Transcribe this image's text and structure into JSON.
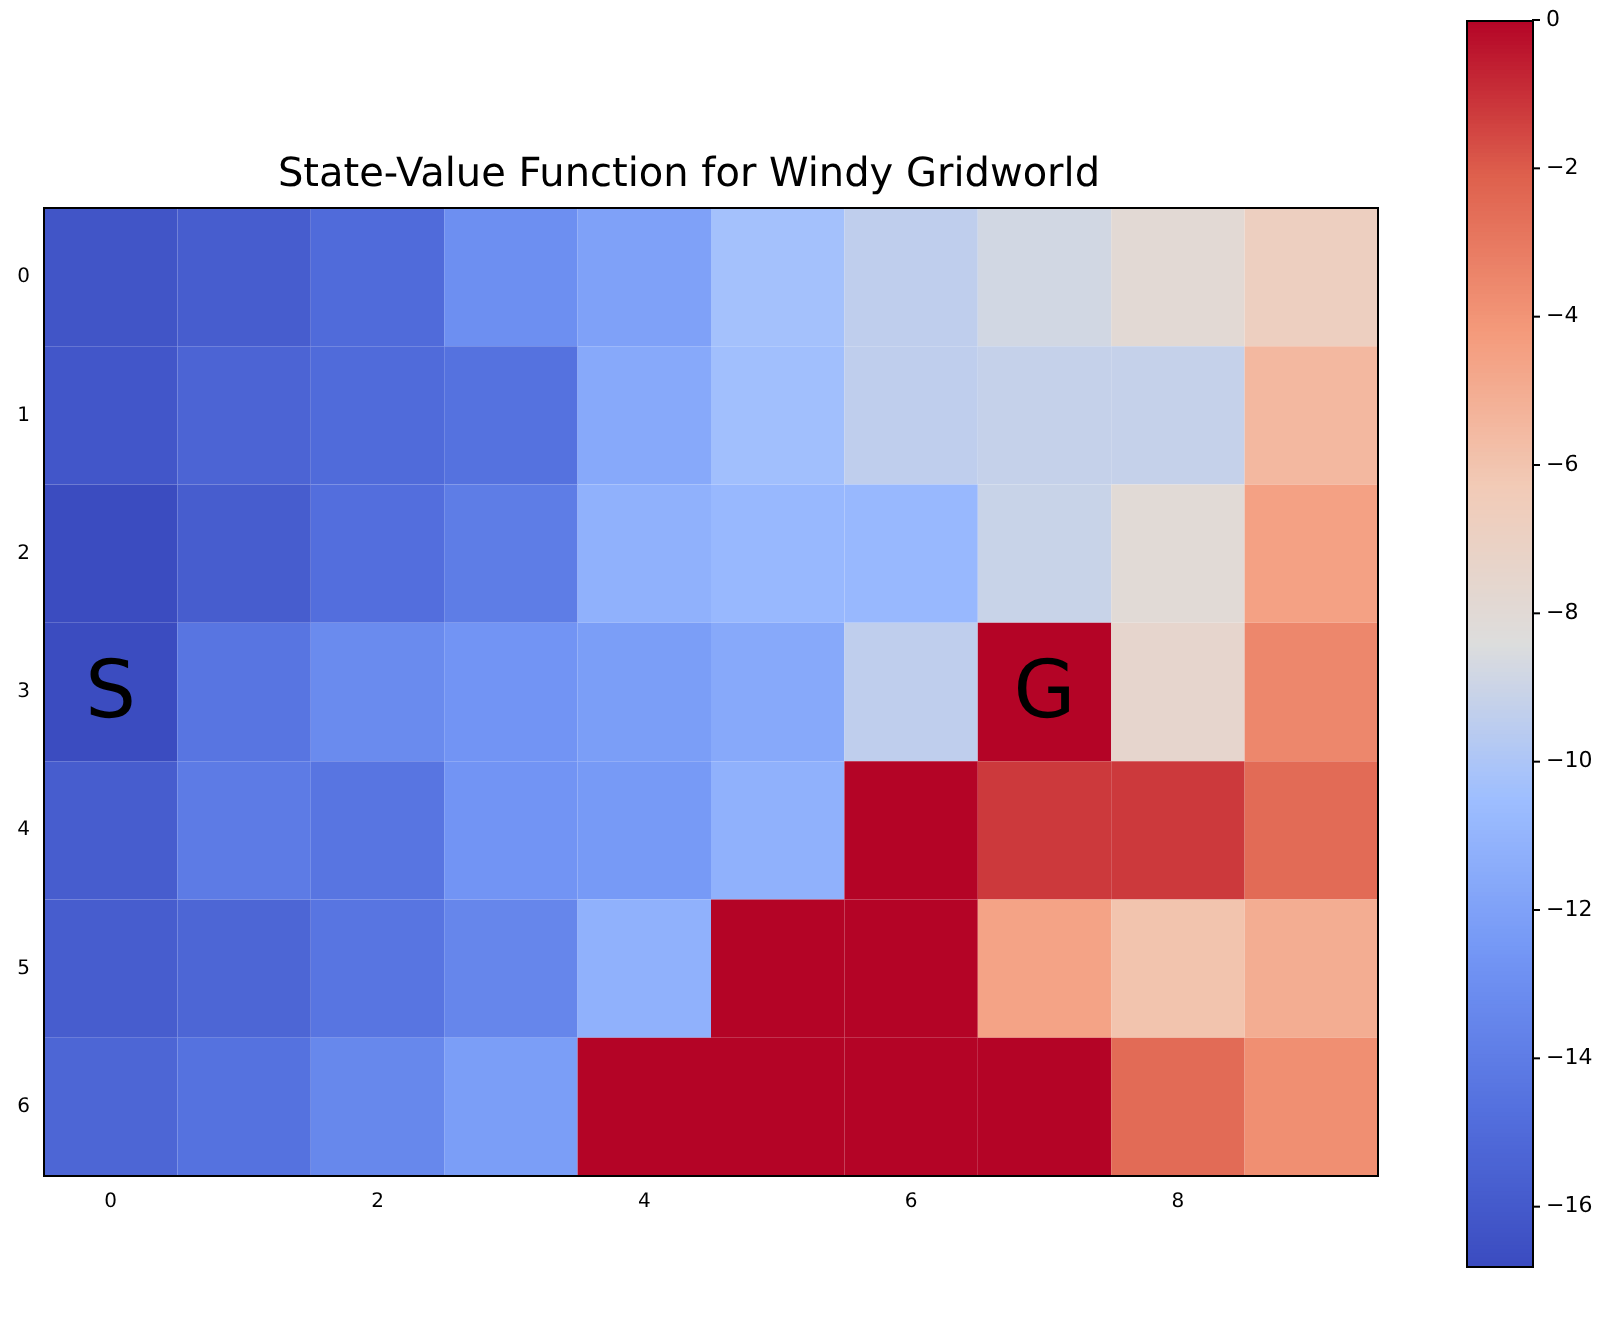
{
  "chart_data": {
    "type": "heatmap",
    "title": "State-Value Function for Windy Gridworld",
    "categories": [
      "0",
      null,
      "2",
      null,
      "4",
      null,
      "6",
      null,
      "8",
      null
    ],
    "y_categories": [
      "0",
      "1",
      "2",
      "3",
      "4",
      "5",
      "6"
    ],
    "cells": [
      [
        -16.3,
        -15.8,
        -15.0,
        -13.0,
        -12.0,
        -10.3,
        -9.4,
        -8.8,
        -7.9,
        -6.8
      ],
      [
        -16.2,
        -15.4,
        -15.0,
        -14.6,
        -11.6,
        -10.4,
        -9.4,
        -9.2,
        -9.2,
        -5.5
      ],
      [
        -16.8,
        -15.8,
        -14.8,
        -14.0,
        -11.2,
        -10.8,
        -10.8,
        -9.1,
        -8.0,
        -4.5
      ],
      [
        -16.8,
        -14.4,
        -13.2,
        -12.7,
        -12.2,
        -11.6,
        -9.4,
        0,
        -7.5,
        -3.5
      ],
      [
        -15.8,
        -14.1,
        -14.4,
        -12.7,
        -12.4,
        -11.2,
        0,
        -1.2,
        -1.2,
        -2.5
      ],
      [
        -15.8,
        -15.3,
        -14.4,
        -13.5,
        -11.2,
        0,
        0,
        -4.6,
        -6.0,
        -5.0
      ],
      [
        -15.3,
        -14.6,
        -13.4,
        -12.2,
        0,
        0,
        0,
        0,
        -2.5,
        -3.8
      ]
    ],
    "clim": [
      -16.8,
      0
    ],
    "cticks": [
      -16,
      -14,
      -12,
      -10,
      -8,
      -6,
      -4,
      -2,
      0
    ],
    "cell_labels": [
      [
        null,
        null,
        null,
        null,
        null,
        null,
        null,
        null,
        null,
        null
      ],
      [
        null,
        null,
        null,
        null,
        null,
        null,
        null,
        null,
        null,
        null
      ],
      [
        null,
        null,
        null,
        null,
        null,
        null,
        null,
        null,
        null,
        null
      ],
      [
        "S",
        null,
        null,
        null,
        null,
        null,
        null,
        "G",
        null,
        null
      ],
      [
        null,
        null,
        null,
        null,
        null,
        null,
        null,
        null,
        null,
        null
      ],
      [
        null,
        null,
        null,
        null,
        null,
        null,
        null,
        null,
        null,
        null
      ],
      [
        null,
        null,
        null,
        null,
        null,
        null,
        null,
        null,
        null,
        null
      ]
    ]
  }
}
